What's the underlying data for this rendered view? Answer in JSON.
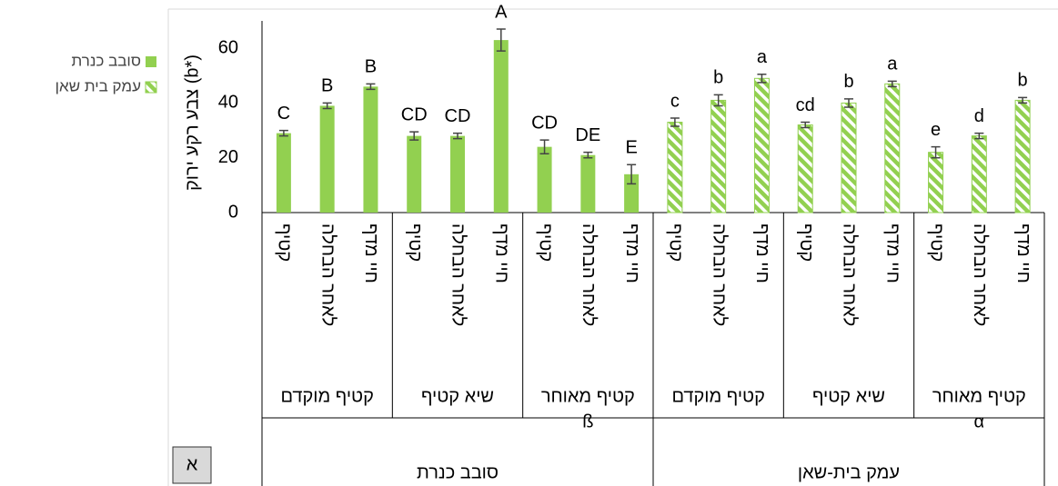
{
  "chart_data": {
    "type": "bar",
    "y_label": "צבע רקע ירוק (b*)",
    "panel_label": "א",
    "categories": [
      "קטיף",
      "לאחר הבחלה",
      "חיי מדף",
      "קטיף",
      "לאחר הבחלה",
      "חיי מדף",
      "קטיף",
      "לאחר הבחלה",
      "חיי מדף",
      "קטיף",
      "לאחר הבחלה",
      "חיי מדף",
      "קטיף",
      "לאחר הבחלה",
      "חיי מדף",
      "קטיף",
      "לאחר הבחלה",
      "חיי מדף"
    ],
    "groups": [
      [
        "קטיף מוקדם"
      ],
      [
        "שיא קטיף"
      ],
      [
        "קטיף מאוחר",
        "ß"
      ],
      [
        "קטיף מוקדם"
      ],
      [
        "שיא קטיף"
      ],
      [
        "קטיף מאוחר",
        "α"
      ]
    ],
    "supergroups": [
      "סובב כנרת",
      "עמק בית-שאן"
    ],
    "series": [
      {
        "name": "סובב כנרת",
        "color": "#92d050",
        "hatch": false,
        "values": [
          29,
          39,
          46,
          28,
          28,
          63,
          24,
          21,
          14,
          null,
          null,
          null,
          null,
          null,
          null,
          null,
          null,
          null
        ],
        "errors": [
          1,
          1,
          1,
          1.5,
          1,
          4,
          2.5,
          1,
          3.5,
          null,
          null,
          null,
          null,
          null,
          null,
          null,
          null,
          null
        ],
        "value_labels": [
          "C",
          "B",
          "B",
          "CD",
          "CD",
          "A",
          "CD",
          "DE",
          "E",
          null,
          null,
          null,
          null,
          null,
          null,
          null,
          null,
          null
        ]
      },
      {
        "name": "עמק בית שאן",
        "color": "#92d050",
        "hatch": true,
        "values": [
          null,
          null,
          null,
          null,
          null,
          null,
          null,
          null,
          null,
          33,
          41,
          49,
          32,
          40,
          47,
          22,
          28,
          41
        ],
        "errors": [
          null,
          null,
          null,
          null,
          null,
          null,
          null,
          null,
          null,
          1.5,
          2,
          1.5,
          1,
          1.5,
          1,
          2,
          1,
          1
        ],
        "value_labels": [
          null,
          null,
          null,
          null,
          null,
          null,
          null,
          null,
          null,
          "c",
          "b",
          "a",
          "cd",
          "b",
          "a",
          "e",
          "d",
          "b"
        ]
      }
    ],
    "ylim": [
      0,
      70
    ],
    "yticks": [
      0,
      20,
      40,
      60
    ]
  }
}
